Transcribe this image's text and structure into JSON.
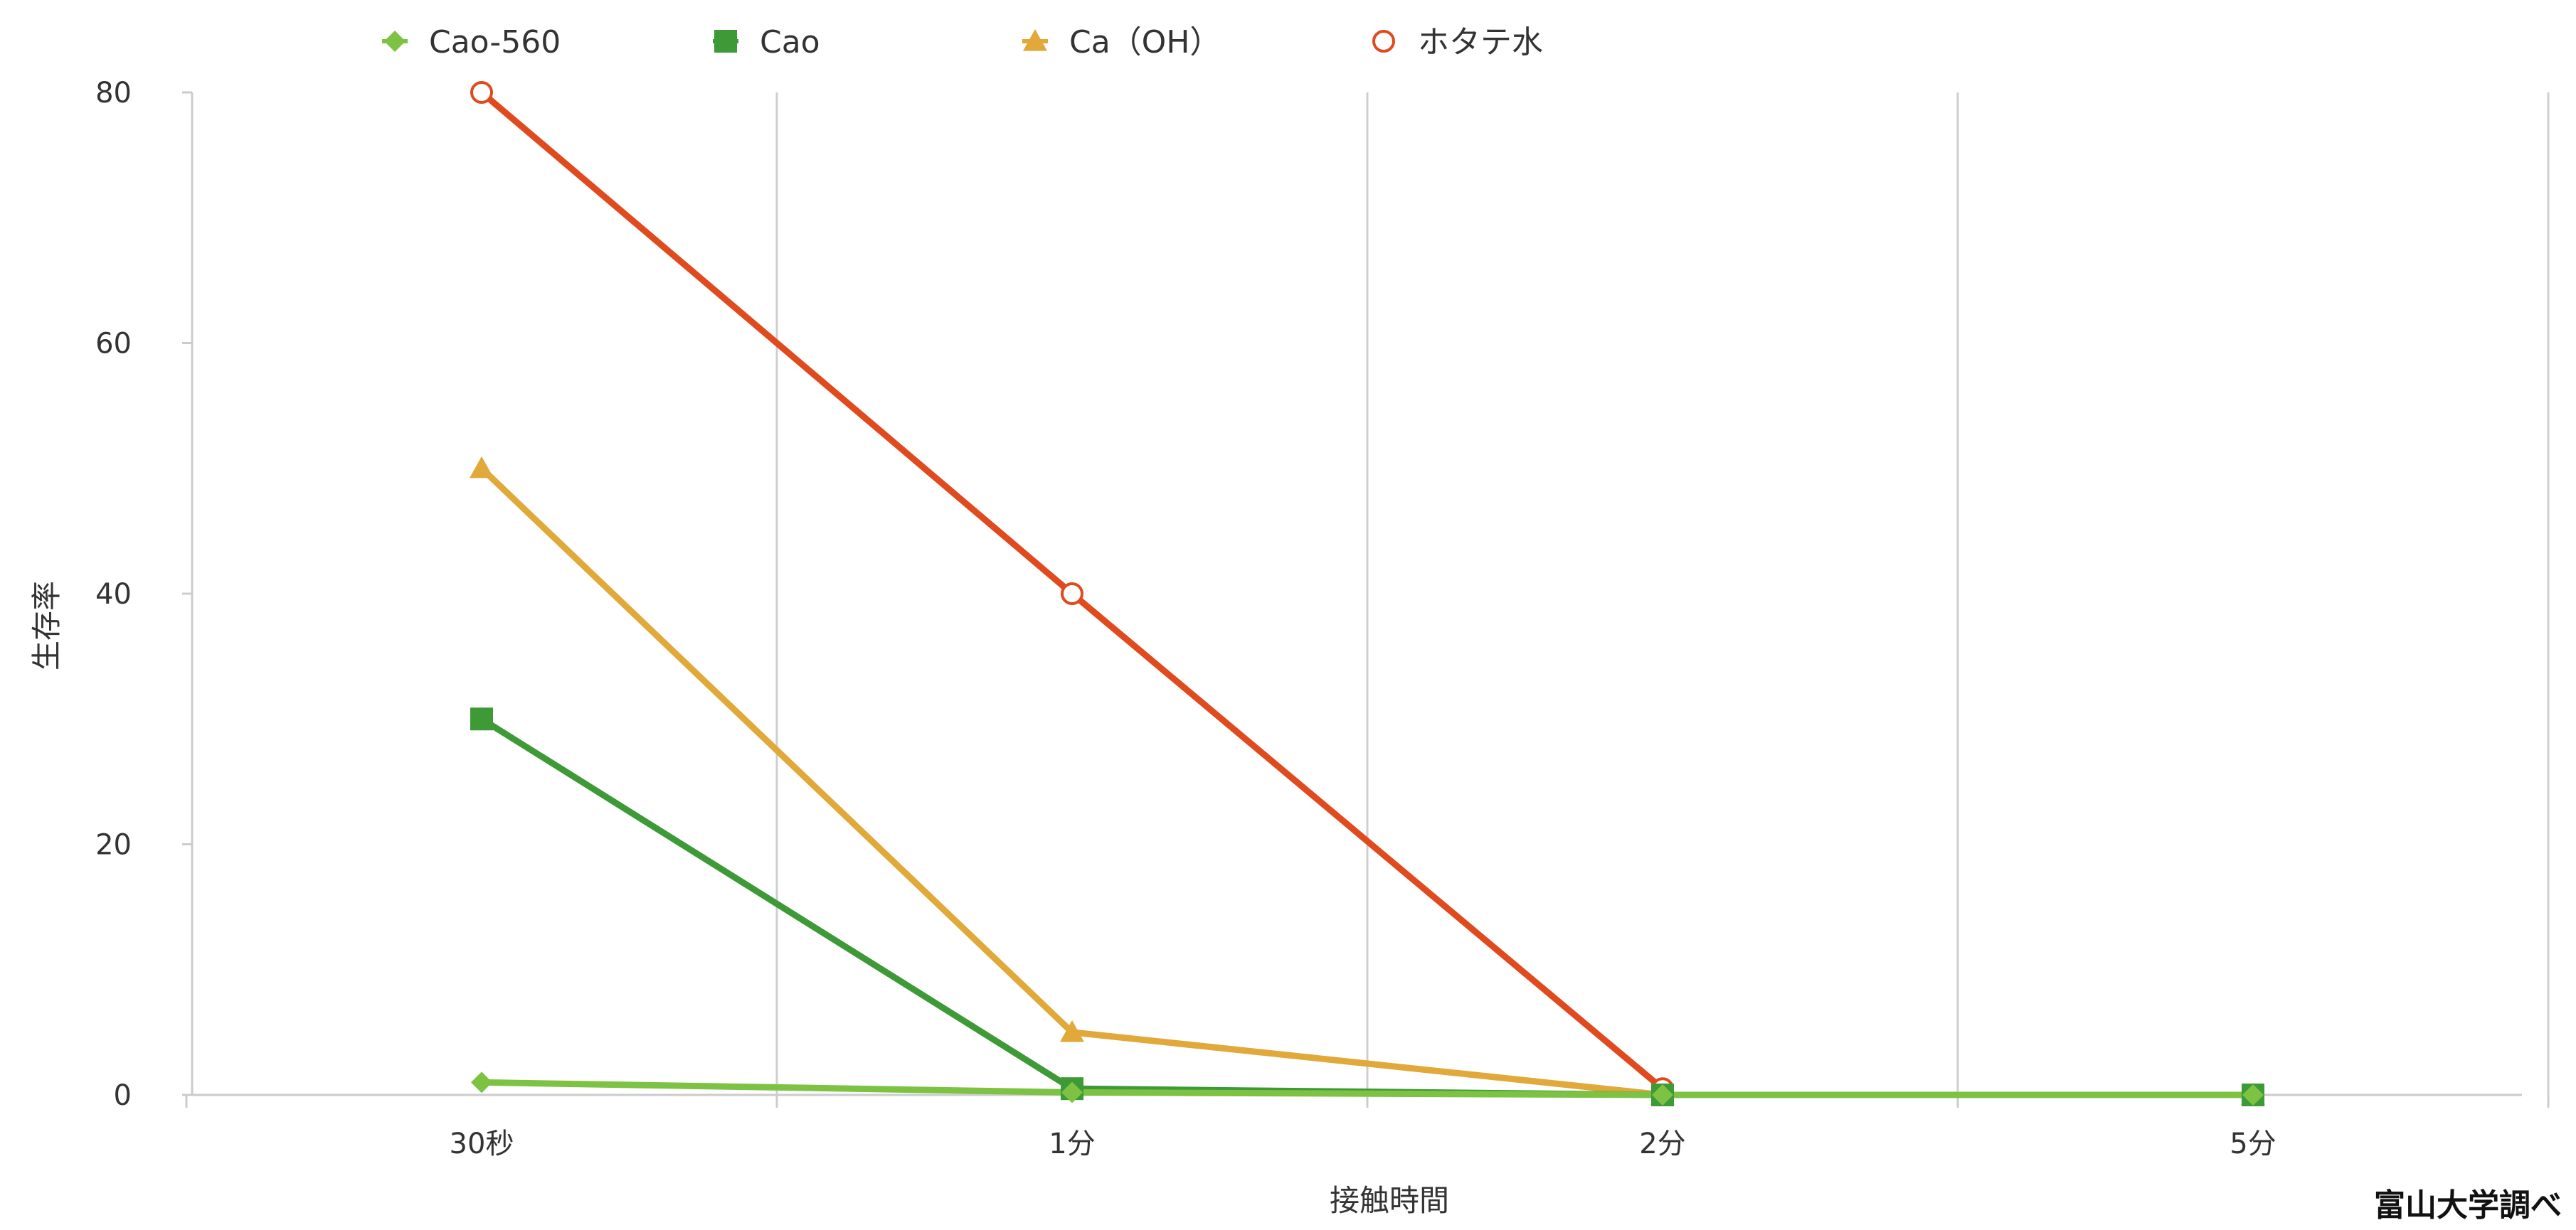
{
  "chart_data": {
    "type": "line",
    "categories": [
      "30秒",
      "1分",
      "2分",
      "5分"
    ],
    "series": [
      {
        "name": "Cao-560",
        "values": [
          1,
          0.2,
          0,
          0
        ],
        "color": "#7dc242",
        "marker": "diamond"
      },
      {
        "name": "Cao",
        "values": [
          30,
          0.5,
          0,
          0
        ],
        "color": "#3d9a37",
        "marker": "square"
      },
      {
        "name": "Ca（OH）",
        "values": [
          50,
          5,
          0,
          0
        ],
        "color": "#e1a83a",
        "marker": "triangle"
      },
      {
        "name": "ホタテ水",
        "values": [
          80,
          40,
          0.5,
          null
        ],
        "color": "#e04a1f",
        "marker": "open-circle"
      }
    ],
    "title": "",
    "xlabel": "接触時間",
    "ylabel": "生存率",
    "ylim": [
      0,
      80
    ],
    "yticks": [
      0,
      20,
      40,
      60,
      80
    ],
    "grid": "vertical",
    "legend_position": "top",
    "source_note": "富山大学調べ"
  }
}
